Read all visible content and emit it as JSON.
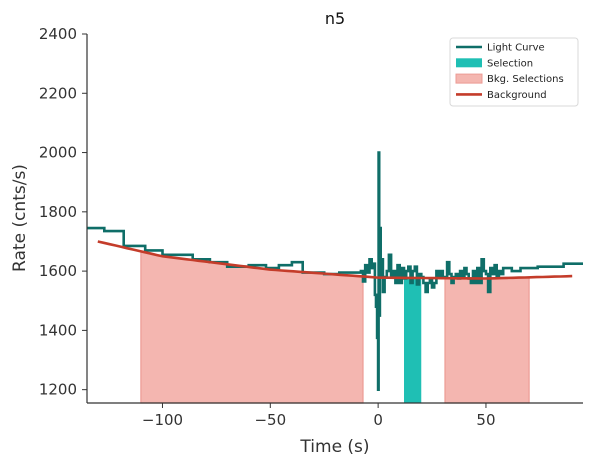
{
  "chart_data": {
    "type": "line",
    "title": "n5",
    "xlabel": "Time (s)",
    "ylabel": "Rate (cnts/s)",
    "xlim": [
      -135,
      95
    ],
    "ylim": [
      1155,
      2400
    ],
    "xticks": [
      -100,
      -50,
      0,
      50
    ],
    "xtick_labels": [
      "−100",
      "−50",
      "0",
      "50"
    ],
    "yticks": [
      1200,
      1400,
      1600,
      1800,
      2000,
      2200,
      2400
    ],
    "ytick_labels": [
      "1200",
      "1400",
      "1600",
      "1800",
      "2000",
      "2200",
      "2400"
    ],
    "grid": false,
    "legend_position": "top-right",
    "legend": [
      {
        "label": "Light Curve",
        "kind": "line",
        "color": "#0f6e68"
      },
      {
        "label": "Selection",
        "kind": "patch",
        "color": "#1fbfb4"
      },
      {
        "label": "Bkg. Selections",
        "kind": "patch",
        "color": "#f4b6b0",
        "edge": "#ec9b94"
      },
      {
        "label": "Background",
        "kind": "line",
        "color": "#c43c2a"
      }
    ],
    "colors": {
      "light_curve": "#0f6e68",
      "selection": "#1fbfb4",
      "bkg_fill": "#f4b6b0",
      "bkg_edge": "#ec9b94",
      "background": "#c43c2a"
    },
    "light_curve": [
      [
        -135,
        1745
      ],
      [
        -127,
        1735
      ],
      [
        -118,
        1685
      ],
      [
        -108,
        1670
      ],
      [
        -100,
        1655
      ],
      [
        -92,
        1655
      ],
      [
        -86,
        1640
      ],
      [
        -78,
        1630
      ],
      [
        -70,
        1615
      ],
      [
        -60,
        1620
      ],
      [
        -52,
        1610
      ],
      [
        -46,
        1620
      ],
      [
        -40,
        1630
      ],
      [
        -35,
        1595
      ],
      [
        -25,
        1590
      ],
      [
        -18,
        1595
      ],
      [
        -11,
        1595
      ],
      [
        -8,
        1600
      ],
      [
        -7,
        1565
      ],
      [
        -6,
        1620
      ],
      [
        -5,
        1595
      ],
      [
        -4,
        1640
      ],
      [
        -3,
        1610
      ],
      [
        -2,
        1625
      ],
      [
        -1.5,
        1520
      ],
      [
        -1,
        1480
      ],
      [
        -0.5,
        1375
      ],
      [
        0,
        1200
      ],
      [
        0.2,
        2000
      ],
      [
        0.5,
        1450
      ],
      [
        0.8,
        1745
      ],
      [
        1.2,
        1580
      ],
      [
        1.6,
        1640
      ],
      [
        2.2,
        1530
      ],
      [
        3,
        1580
      ],
      [
        4,
        1600
      ],
      [
        5,
        1655
      ],
      [
        6,
        1580
      ],
      [
        7,
        1600
      ],
      [
        8,
        1560
      ],
      [
        9,
        1620
      ],
      [
        10,
        1560
      ],
      [
        11,
        1610
      ],
      [
        12,
        1575
      ],
      [
        13,
        1600
      ],
      [
        14,
        1615
      ],
      [
        15,
        1560
      ],
      [
        16,
        1600
      ],
      [
        17,
        1615
      ],
      [
        18,
        1555
      ],
      [
        19,
        1590
      ],
      [
        20,
        1580
      ],
      [
        21,
        1560
      ],
      [
        22,
        1530
      ],
      [
        23,
        1560
      ],
      [
        24,
        1570
      ],
      [
        25,
        1545
      ],
      [
        26,
        1560
      ],
      [
        27,
        1600
      ],
      [
        28,
        1580
      ],
      [
        29,
        1600
      ],
      [
        30,
        1580
      ],
      [
        32,
        1630
      ],
      [
        33,
        1590
      ],
      [
        34,
        1560
      ],
      [
        35,
        1580
      ],
      [
        36,
        1590
      ],
      [
        37,
        1575
      ],
      [
        38,
        1600
      ],
      [
        39,
        1580
      ],
      [
        40,
        1610
      ],
      [
        41,
        1590
      ],
      [
        42,
        1575
      ],
      [
        43,
        1560
      ],
      [
        44,
        1600
      ],
      [
        45,
        1560
      ],
      [
        46,
        1610
      ],
      [
        47,
        1560
      ],
      [
        48,
        1640
      ],
      [
        49,
        1600
      ],
      [
        50,
        1590
      ],
      [
        51,
        1530
      ],
      [
        52,
        1610
      ],
      [
        53,
        1590
      ],
      [
        54,
        1620
      ],
      [
        55,
        1580
      ],
      [
        56,
        1600
      ],
      [
        57,
        1590
      ],
      [
        58,
        1610
      ],
      [
        62,
        1600
      ],
      [
        66,
        1610
      ],
      [
        70,
        1610
      ],
      [
        74,
        1615
      ],
      [
        80,
        1615
      ],
      [
        86,
        1625
      ],
      [
        95,
        1625
      ]
    ],
    "selection": {
      "start": 12,
      "end": 20
    },
    "bkg_selections": [
      {
        "start": -110,
        "end": -7
      },
      {
        "start": 31,
        "end": 70
      }
    ],
    "background_model": {
      "x": [
        -130,
        -100,
        -50,
        0,
        50,
        90
      ],
      "y": [
        1700,
        1650,
        1605,
        1578,
        1575,
        1583
      ]
    }
  }
}
